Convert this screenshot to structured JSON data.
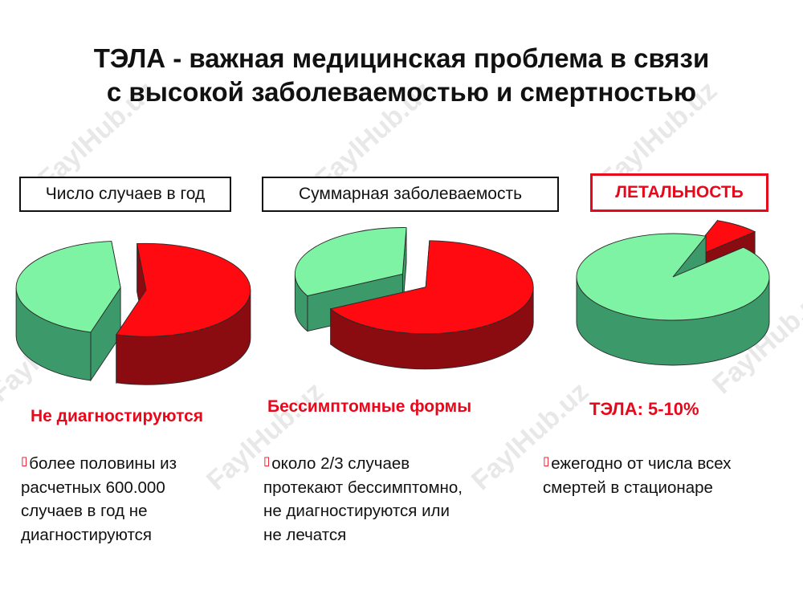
{
  "title": {
    "line1": "ТЭЛА - важная медицинская проблема в связи",
    "line2": "с высокой заболеваемостью и смертностью"
  },
  "watermark": "FaylHub.uz",
  "colors": {
    "red_top": "#ff0a10",
    "red_side": "#8a0b10",
    "green_top": "#7ff3a4",
    "green_side": "#3c9a6a",
    "accent_red": "#e8081b"
  },
  "panels": [
    {
      "header": "Число случаев в год",
      "header_style": "plain",
      "caption": "Не диагностируются",
      "bullet_lines": [
        "более половины из",
        "расчетных 600.000",
        "случаев в год не",
        "диагностируются"
      ]
    },
    {
      "header": "Суммарная заболеваемость",
      "header_style": "plain",
      "caption": "Бессимптомные формы",
      "bullet_lines": [
        "около 2/3 случаев",
        "протекают бессимптомно,",
        "не диагностируются или",
        "не лечатся"
      ]
    },
    {
      "header": "ЛЕТАЛЬНОСТЬ",
      "header_style": "red",
      "caption": "ТЭЛА: 5-10%",
      "bullet_lines": [
        "ежегодно от числа всех",
        "смертей в стационаре"
      ]
    }
  ],
  "chart_data": [
    {
      "type": "pie",
      "title": "Число случаев в год",
      "slices": [
        {
          "label": "Не диагностируются",
          "value": 56,
          "color": "#ff0a10",
          "exploded": true
        },
        {
          "label": "",
          "value": 44,
          "color": "#7ff3a4",
          "exploded": true
        }
      ]
    },
    {
      "type": "pie",
      "title": "Суммарная заболеваемость",
      "slices": [
        {
          "label": "Бессимптомные формы",
          "value": 66.7,
          "color": "#ff0a10",
          "exploded": true
        },
        {
          "label": "",
          "value": 33.3,
          "color": "#7ff3a4",
          "exploded": true
        }
      ]
    },
    {
      "type": "pie",
      "title": "ЛЕТАЛЬНОСТЬ",
      "slices": [
        {
          "label": "ТЭЛА: 5-10%",
          "value": 7.5,
          "color": "#ff0a10",
          "exploded": true
        },
        {
          "label": "",
          "value": 92.5,
          "color": "#7ff3a4",
          "exploded": false
        }
      ]
    }
  ]
}
